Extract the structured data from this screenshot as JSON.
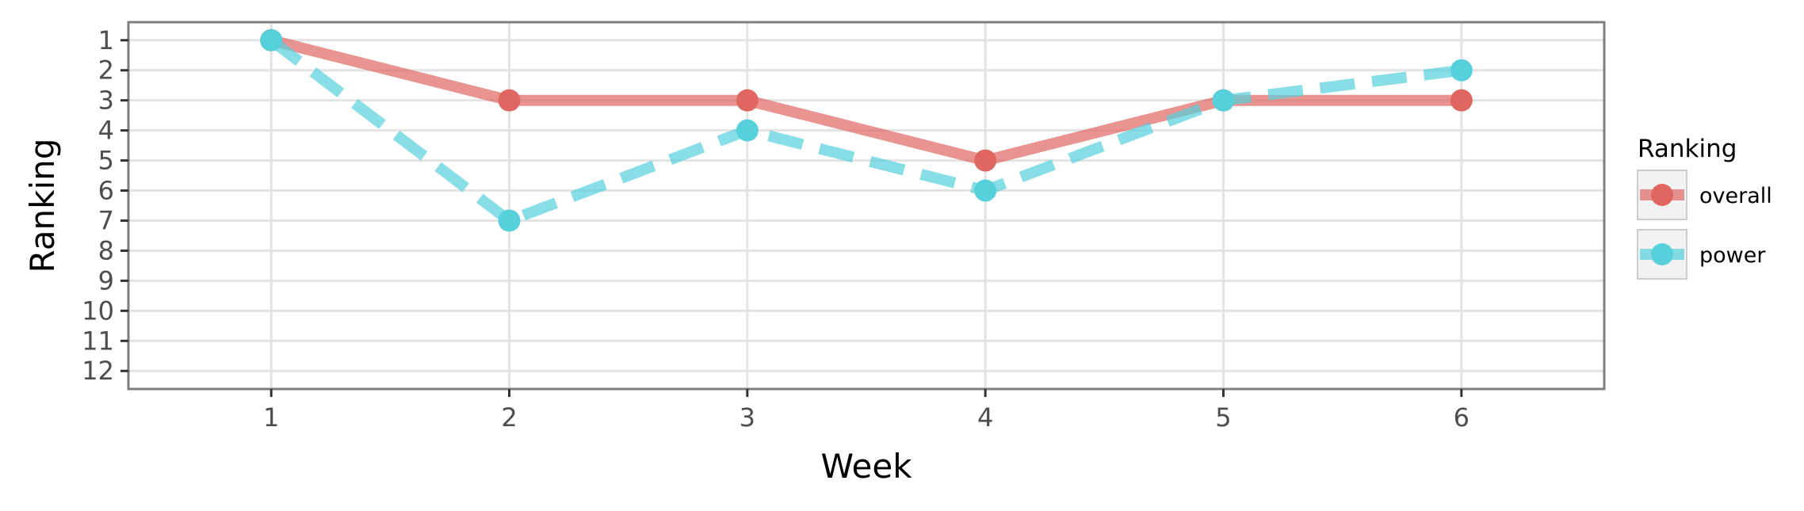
{
  "chart_data": {
    "type": "line",
    "xlabel": "Week",
    "ylabel": "Ranking",
    "x": [
      1,
      2,
      3,
      4,
      5,
      6
    ],
    "xlim": [
      0.4,
      6.6
    ],
    "ylim": [
      12.6,
      0.4
    ],
    "y_reversed": true,
    "x_ticks": [
      1,
      2,
      3,
      4,
      5,
      6
    ],
    "y_ticks": [
      1,
      2,
      3,
      4,
      5,
      6,
      7,
      8,
      9,
      10,
      11,
      12
    ],
    "grid": true,
    "legend": {
      "title": "Ranking",
      "placement": "right"
    },
    "series": [
      {
        "name": "overall",
        "values": [
          1,
          3,
          3,
          5,
          3,
          3
        ],
        "color": "#E06761",
        "linestyle": "solid"
      },
      {
        "name": "power",
        "values": [
          1,
          7,
          4,
          6,
          3,
          2
        ],
        "color": "#56D0DB",
        "linestyle": "dashed"
      }
    ]
  }
}
